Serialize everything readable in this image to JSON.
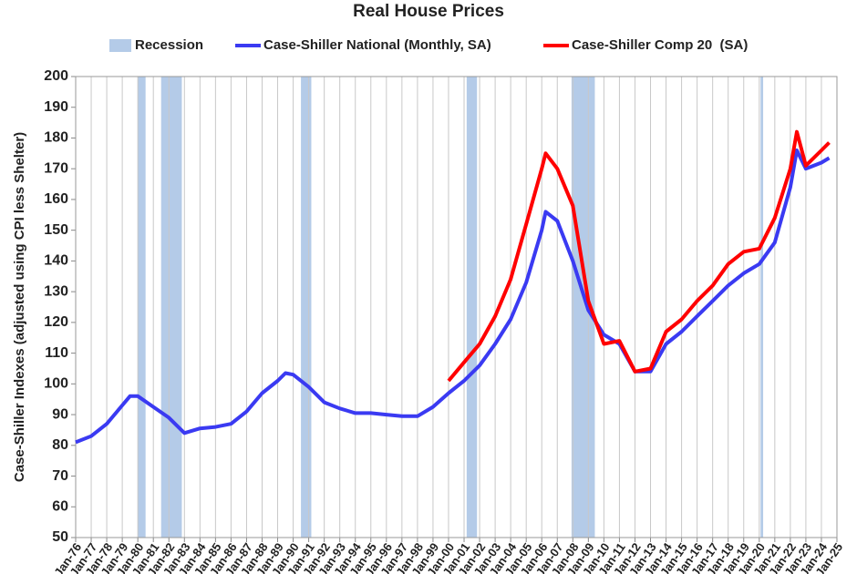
{
  "chart_data": {
    "type": "line",
    "title": "Real House Prices",
    "y_label": "Case-Shiller Indexes (adjusted using CPI less Shelter)",
    "ylim": [
      50,
      200
    ],
    "yticks": [
      50,
      60,
      70,
      80,
      90,
      100,
      110,
      120,
      130,
      140,
      150,
      160,
      170,
      180,
      190,
      200
    ],
    "xlim": [
      "Jan-76",
      "Jan-25"
    ],
    "xticks": [
      "Jan-76",
      "Jan-77",
      "Jan-78",
      "Jan-79",
      "Jan-80",
      "Jan-81",
      "Jan-82",
      "Jan-83",
      "Jan-84",
      "Jan-85",
      "Jan-86",
      "Jan-87",
      "Jan-88",
      "Jan-89",
      "Jan-90",
      "Jan-91",
      "Jan-92",
      "Jan-93",
      "Jan-94",
      "Jan-95",
      "Jan-96",
      "Jan-97",
      "Jan-98",
      "Jan-99",
      "Jan-00",
      "Jan-01",
      "Jan-02",
      "Jan-03",
      "Jan-04",
      "Jan-05",
      "Jan-06",
      "Jan-07",
      "Jan-08",
      "Jan-09",
      "Jan-10",
      "Jan-11",
      "Jan-12",
      "Jan-13",
      "Jan-14",
      "Jan-15",
      "Jan-16",
      "Jan-17",
      "Jan-18",
      "Jan-19",
      "Jan-20",
      "Jan-21",
      "Jan-22",
      "Jan-23",
      "Jan-24",
      "Jan-25"
    ],
    "grid": "x",
    "recession": {
      "name": "Recession",
      "color": "#b4cbe8",
      "periods": [
        [
          "Jan-80",
          "Jul-80"
        ],
        [
          "Jul-81",
          "Nov-82"
        ],
        [
          "Jul-90",
          "Mar-91"
        ],
        [
          "Mar-01",
          "Nov-01"
        ],
        [
          "Dec-07",
          "Jun-09"
        ],
        [
          "Feb-20",
          "Apr-20"
        ]
      ]
    },
    "x": [
      "Jan-76",
      "Jan-77",
      "Jan-78",
      "Jan-79",
      "Jul-79",
      "Jan-80",
      "Jan-81",
      "Jan-82",
      "Jan-83",
      "Jan-84",
      "Jan-85",
      "Jan-86",
      "Jan-87",
      "Jan-88",
      "Jan-89",
      "Jul-89",
      "Jan-90",
      "Jan-91",
      "Jan-92",
      "Jan-93",
      "Jan-94",
      "Jan-95",
      "Jan-96",
      "Jan-97",
      "Jan-98",
      "Jan-99",
      "Jan-00",
      "Jan-01",
      "Jan-02",
      "Jan-03",
      "Jan-04",
      "Jan-05",
      "Jan-06",
      "Apr-06",
      "Jan-07",
      "Jan-08",
      "Jan-09",
      "Jan-10",
      "Jan-11",
      "Jan-12",
      "Jan-13",
      "Jan-14",
      "Jan-15",
      "Jan-16",
      "Jan-17",
      "Jan-18",
      "Jan-19",
      "Jan-20",
      "Jan-21",
      "Jan-22",
      "Jun-22",
      "Jan-23",
      "Jan-24",
      "Jul-24"
    ],
    "series": [
      {
        "name": "Case-Shiller National (Monthly, SA)",
        "color": "#3a3af2",
        "values": [
          81,
          83,
          87,
          93,
          96,
          96,
          92.5,
          89,
          84,
          85.5,
          86,
          87,
          91,
          97,
          101,
          103.5,
          103,
          99,
          94,
          92,
          90.5,
          90.5,
          90,
          89.5,
          89.5,
          92.5,
          97,
          101,
          106,
          113,
          121,
          133,
          150,
          156,
          153,
          140,
          124,
          116,
          113,
          104,
          104,
          113,
          117,
          122,
          127,
          132,
          136,
          139,
          146,
          164,
          176,
          170,
          172,
          173.5
        ]
      },
      {
        "name": "Case-Shiller Comp 20  (SA)",
        "color": "#ff0000",
        "values": [
          null,
          null,
          null,
          null,
          null,
          null,
          null,
          null,
          null,
          null,
          null,
          null,
          null,
          null,
          null,
          null,
          null,
          null,
          null,
          null,
          null,
          null,
          null,
          null,
          null,
          null,
          101,
          107,
          113,
          122,
          134,
          152,
          170,
          175,
          170,
          158,
          127,
          113,
          114,
          104,
          105,
          117,
          121,
          127,
          132,
          139,
          143,
          144,
          154,
          170,
          182,
          171,
          176,
          178.5
        ]
      }
    ]
  }
}
